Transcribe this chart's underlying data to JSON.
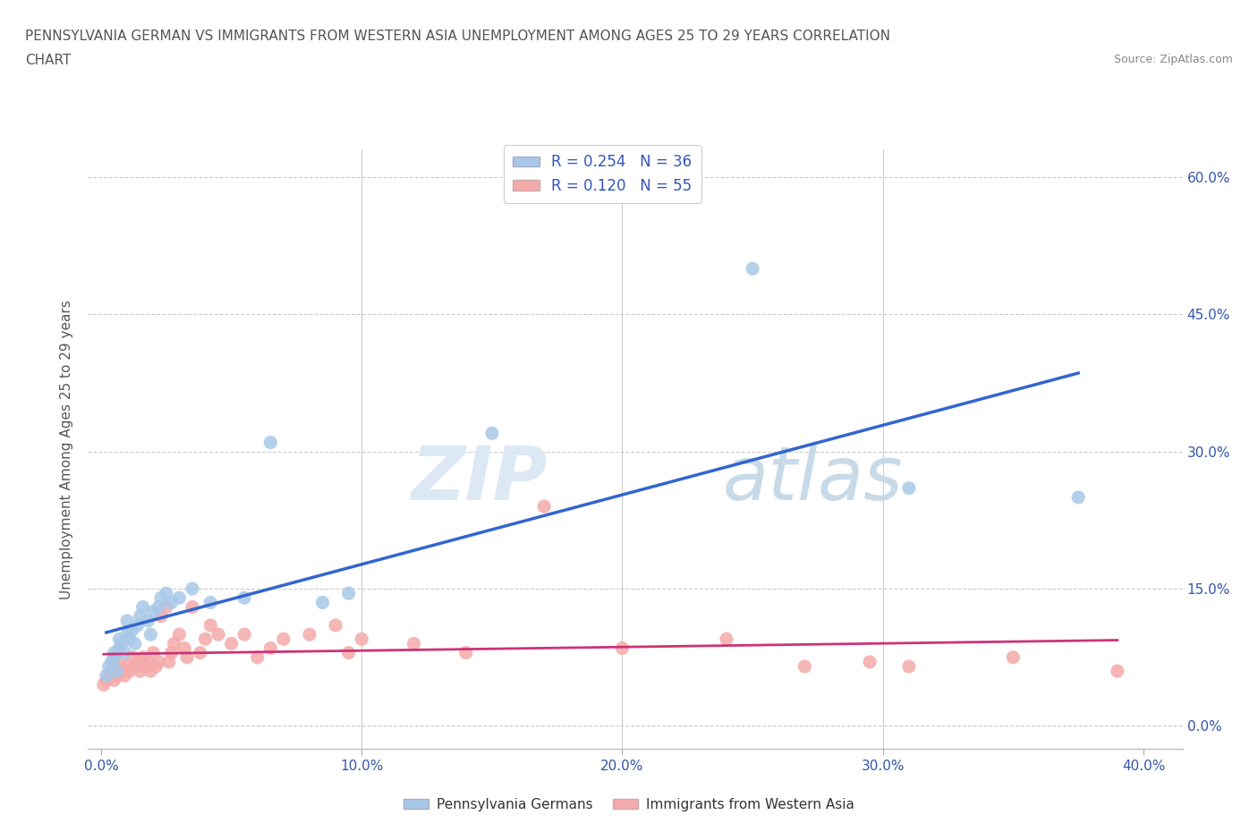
{
  "title_line1": "PENNSYLVANIA GERMAN VS IMMIGRANTS FROM WESTERN ASIA UNEMPLOYMENT AMONG AGES 25 TO 29 YEARS CORRELATION",
  "title_line2": "CHART",
  "source": "Source: ZipAtlas.com",
  "ylabel": "Unemployment Among Ages 25 to 29 years",
  "xlabel_ticks": [
    "0.0%",
    "10.0%",
    "20.0%",
    "30.0%",
    "40.0%"
  ],
  "xlabel_vals": [
    0.0,
    0.1,
    0.2,
    0.3,
    0.4
  ],
  "ylabel_ticks": [
    "0.0%",
    "15.0%",
    "30.0%",
    "45.0%",
    "60.0%"
  ],
  "ylabel_vals": [
    0.0,
    0.15,
    0.3,
    0.45,
    0.6
  ],
  "xlim": [
    -0.005,
    0.415
  ],
  "ylim": [
    -0.025,
    0.63
  ],
  "blue_R": 0.254,
  "blue_N": 36,
  "pink_R": 0.12,
  "pink_N": 55,
  "blue_color": "#a8c8e8",
  "pink_color": "#f4aaaa",
  "blue_line_color": "#3366cc",
  "pink_line_color": "#cc3377",
  "legend_label_blue": "Pennsylvania Germans",
  "legend_label_pink": "Immigrants from Western Asia",
  "watermark_zip": "ZIP",
  "watermark_atlas": "atlas",
  "blue_x": [
    0.002,
    0.003,
    0.004,
    0.005,
    0.005,
    0.006,
    0.007,
    0.007,
    0.008,
    0.009,
    0.01,
    0.01,
    0.011,
    0.012,
    0.013,
    0.014,
    0.015,
    0.016,
    0.018,
    0.019,
    0.02,
    0.022,
    0.023,
    0.025,
    0.027,
    0.03,
    0.035,
    0.042,
    0.055,
    0.065,
    0.085,
    0.095,
    0.15,
    0.25,
    0.31,
    0.375
  ],
  "blue_y": [
    0.055,
    0.065,
    0.07,
    0.075,
    0.08,
    0.06,
    0.085,
    0.095,
    0.09,
    0.08,
    0.1,
    0.115,
    0.095,
    0.105,
    0.09,
    0.11,
    0.12,
    0.13,
    0.115,
    0.1,
    0.125,
    0.13,
    0.14,
    0.145,
    0.135,
    0.14,
    0.15,
    0.135,
    0.14,
    0.31,
    0.135,
    0.145,
    0.32,
    0.5,
    0.26,
    0.25
  ],
  "pink_x": [
    0.001,
    0.002,
    0.003,
    0.004,
    0.005,
    0.005,
    0.006,
    0.007,
    0.008,
    0.009,
    0.01,
    0.011,
    0.012,
    0.013,
    0.014,
    0.015,
    0.016,
    0.017,
    0.018,
    0.019,
    0.02,
    0.021,
    0.022,
    0.023,
    0.025,
    0.026,
    0.027,
    0.028,
    0.03,
    0.032,
    0.033,
    0.035,
    0.038,
    0.04,
    0.042,
    0.045,
    0.05,
    0.055,
    0.06,
    0.065,
    0.07,
    0.08,
    0.09,
    0.095,
    0.1,
    0.12,
    0.14,
    0.17,
    0.2,
    0.24,
    0.27,
    0.295,
    0.31,
    0.35,
    0.39
  ],
  "pink_y": [
    0.045,
    0.05,
    0.055,
    0.06,
    0.05,
    0.065,
    0.055,
    0.07,
    0.06,
    0.055,
    0.065,
    0.06,
    0.075,
    0.065,
    0.07,
    0.06,
    0.075,
    0.065,
    0.07,
    0.06,
    0.08,
    0.065,
    0.07,
    0.12,
    0.13,
    0.07,
    0.08,
    0.09,
    0.1,
    0.085,
    0.075,
    0.13,
    0.08,
    0.095,
    0.11,
    0.1,
    0.09,
    0.1,
    0.075,
    0.085,
    0.095,
    0.1,
    0.11,
    0.08,
    0.095,
    0.09,
    0.08,
    0.24,
    0.085,
    0.095,
    0.065,
    0.07,
    0.065,
    0.075,
    0.06
  ]
}
